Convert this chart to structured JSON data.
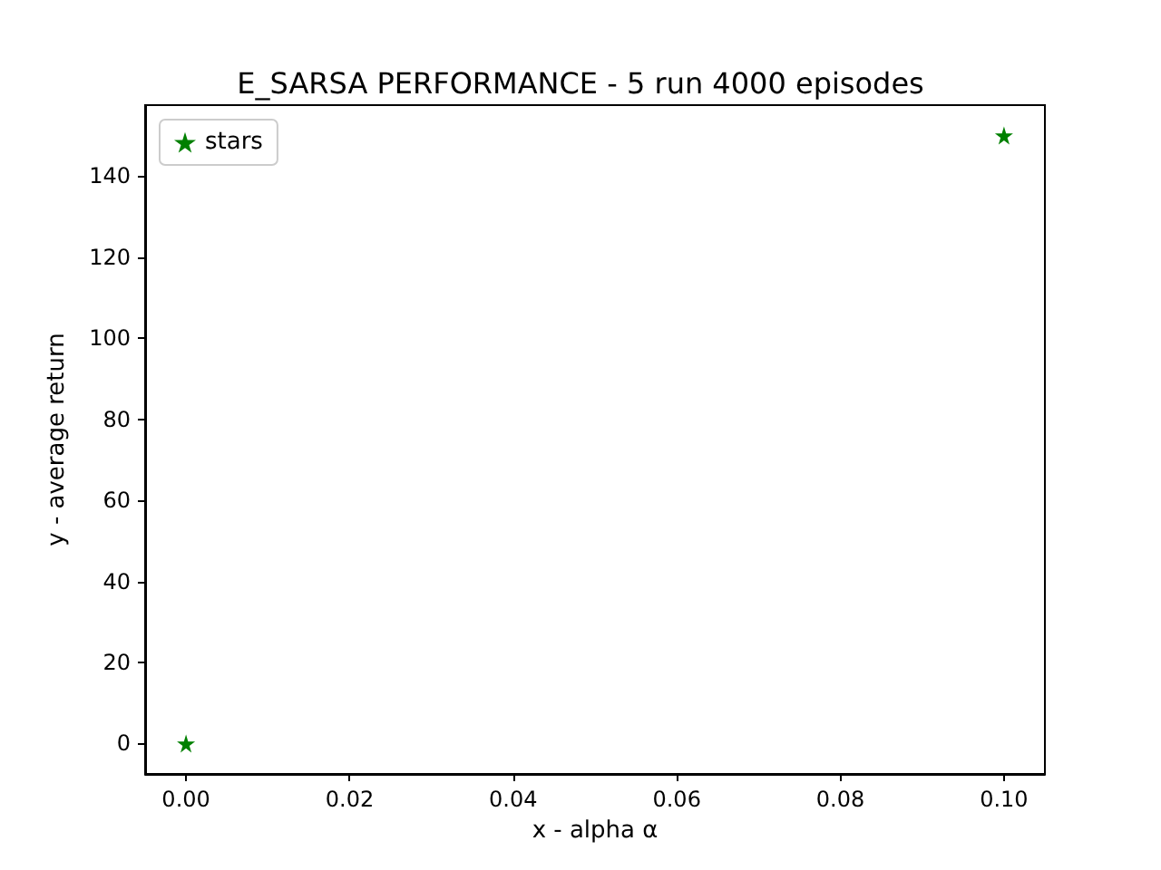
{
  "chart_data": {
    "type": "scatter",
    "title": "E_SARSA PERFORMANCE - 5 run 4000 episodes",
    "xlabel": "x - alpha α",
    "ylabel": "y - average return",
    "x": [
      0,
      0.1
    ],
    "series": [
      {
        "name": "stars",
        "color": "#008000",
        "values": [
          0,
          150
        ]
      }
    ],
    "xlim": [
      -0.005,
      0.105
    ],
    "xticks": [
      {
        "value": 0,
        "label": "0.00"
      },
      {
        "value": 0.02,
        "label": "0.02"
      },
      {
        "value": 0.04,
        "label": "0.04"
      },
      {
        "value": 0.06,
        "label": "0.06"
      },
      {
        "value": 0.08,
        "label": "0.08"
      },
      {
        "value": 0.1,
        "label": "0.10"
      }
    ],
    "ylim": [
      -7.5,
      157.5
    ],
    "yticks": [
      0,
      20,
      40,
      60,
      80,
      100,
      120,
      140
    ],
    "marker": "star",
    "legend": "top left",
    "grid": false
  }
}
